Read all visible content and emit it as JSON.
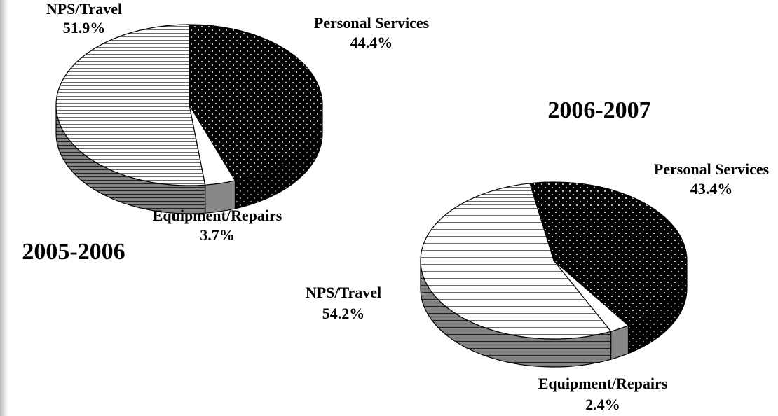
{
  "chart_data": [
    {
      "type": "pie",
      "title": "2005-2006",
      "categories": [
        "Personal Services",
        "Equipment/Repairs",
        "NPS/Travel"
      ],
      "values": [
        44.4,
        3.7,
        51.9
      ],
      "value_labels": [
        "44.4%",
        "3.7%",
        "51.9%"
      ]
    },
    {
      "type": "pie",
      "title": "2006-2007",
      "categories": [
        "Personal Services",
        "Equipment/Repairs",
        "NPS/Travel"
      ],
      "values": [
        43.4,
        2.4,
        54.2
      ],
      "value_labels": [
        "43.4%",
        "2.4%",
        "54.2%"
      ]
    }
  ]
}
